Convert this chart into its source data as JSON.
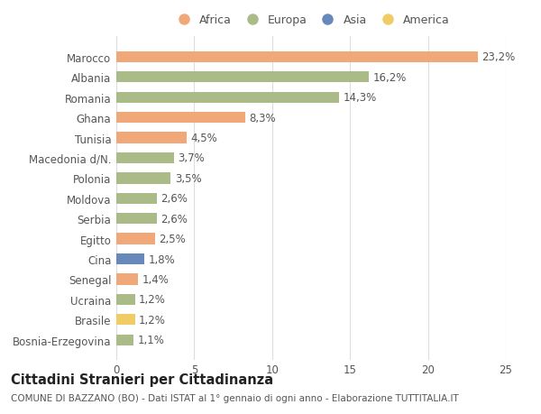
{
  "countries": [
    "Bosnia-Erzegovina",
    "Brasile",
    "Ucraina",
    "Senegal",
    "Cina",
    "Egitto",
    "Serbia",
    "Moldova",
    "Polonia",
    "Macedonia d/N.",
    "Tunisia",
    "Ghana",
    "Romania",
    "Albania",
    "Marocco"
  ],
  "values": [
    1.1,
    1.2,
    1.2,
    1.4,
    1.8,
    2.5,
    2.6,
    2.6,
    3.5,
    3.7,
    4.5,
    8.3,
    14.3,
    16.2,
    23.2
  ],
  "labels": [
    "1,1%",
    "1,2%",
    "1,2%",
    "1,4%",
    "1,8%",
    "2,5%",
    "2,6%",
    "2,6%",
    "3,5%",
    "3,7%",
    "4,5%",
    "8,3%",
    "14,3%",
    "16,2%",
    "23,2%"
  ],
  "continents": [
    "Europa",
    "America",
    "Europa",
    "Africa",
    "Asia",
    "Africa",
    "Europa",
    "Europa",
    "Europa",
    "Europa",
    "Africa",
    "Africa",
    "Europa",
    "Europa",
    "Africa"
  ],
  "continent_colors": {
    "Africa": "#F0A878",
    "Europa": "#AABB88",
    "Asia": "#6688BB",
    "America": "#F0CC66"
  },
  "legend_order": [
    "Africa",
    "Europa",
    "Asia",
    "America"
  ],
  "title": "Cittadini Stranieri per Cittadinanza",
  "subtitle": "COMUNE DI BAZZANO (BO) - Dati ISTAT al 1° gennaio di ogni anno - Elaborazione TUTTITALIA.IT",
  "xlim": [
    0,
    25
  ],
  "xticks": [
    0,
    5,
    10,
    15,
    20,
    25
  ],
  "bar_height": 0.55,
  "background_color": "#ffffff",
  "grid_color": "#dddddd",
  "text_color": "#555555",
  "label_fontsize": 8.5,
  "tick_fontsize": 8.5,
  "title_fontsize": 10.5,
  "subtitle_fontsize": 7.5
}
